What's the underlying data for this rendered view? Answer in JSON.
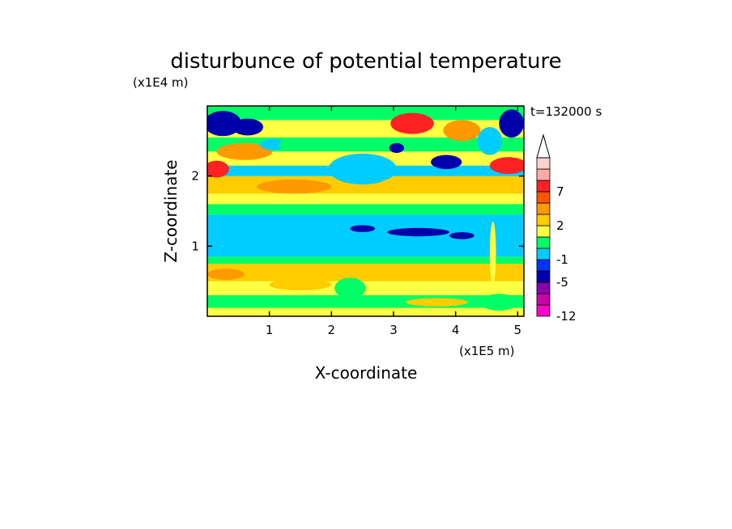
{
  "chart_data": {
    "type": "heatmap",
    "title": "disturbunce of potential temperature",
    "y_scale_label": "(x1E4 m)",
    "x_scale_label": "(x1E5 m)",
    "xlabel": "X-coordinate",
    "ylabel": "Z-coordinate",
    "time_label": "t=132000 s",
    "xlim": [
      0,
      5.1
    ],
    "ylim": [
      0,
      3.0
    ],
    "x_ticks": [
      "1",
      "2",
      "3",
      "4",
      "5"
    ],
    "y_ticks": [
      "1",
      "2"
    ],
    "colorbar": {
      "labels": [
        "7",
        "2",
        "-1",
        "-5",
        "-12"
      ],
      "levels": [
        -12,
        -9,
        -7,
        -5,
        -3,
        -1,
        0,
        1,
        2,
        3,
        5,
        7,
        9,
        11
      ],
      "colors": [
        "#ff00cc",
        "#cc00aa",
        "#8800aa",
        "#0000aa",
        "#0033ff",
        "#00ccff",
        "#00ff66",
        "#ffff44",
        "#ffcc00",
        "#ff9900",
        "#ff5500",
        "#ff2222",
        "#ffaaaa",
        "#ffd0d0"
      ],
      "extend": "max"
    },
    "bands": [
      {
        "z_from": 0.0,
        "z_to": 0.12,
        "class": 1
      },
      {
        "z_from": 0.12,
        "z_to": 0.3,
        "class": 0
      },
      {
        "z_from": 0.3,
        "z_to": 0.5,
        "class": 1
      },
      {
        "z_from": 0.5,
        "z_to": 0.75,
        "class": 2
      },
      {
        "z_from": 0.75,
        "z_to": 0.85,
        "class": 0
      },
      {
        "z_from": 0.85,
        "z_to": 1.45,
        "class": -1
      },
      {
        "z_from": 1.45,
        "z_to": 1.6,
        "class": 0
      },
      {
        "z_from": 1.6,
        "z_to": 1.75,
        "class": 1
      },
      {
        "z_from": 1.75,
        "z_to": 2.0,
        "class": 2
      },
      {
        "z_from": 2.0,
        "z_to": 2.15,
        "class": -1
      },
      {
        "z_from": 2.15,
        "z_to": 2.35,
        "class": 1
      },
      {
        "z_from": 2.35,
        "z_to": 2.55,
        "class": 0
      },
      {
        "z_from": 2.55,
        "z_to": 2.8,
        "class": 1
      },
      {
        "z_from": 2.8,
        "z_to": 3.0,
        "class": 0
      }
    ],
    "blobs": [
      {
        "x": 0.25,
        "z": 2.75,
        "rx": 0.3,
        "rz": 0.18,
        "class": -5
      },
      {
        "x": 0.65,
        "z": 2.7,
        "rx": 0.25,
        "rz": 0.12,
        "class": -5
      },
      {
        "x": 0.15,
        "z": 2.1,
        "rx": 0.2,
        "rz": 0.12,
        "class": 7
      },
      {
        "x": 0.6,
        "z": 2.35,
        "rx": 0.45,
        "rz": 0.12,
        "class": 3
      },
      {
        "x": 1.05,
        "z": 2.45,
        "rx": 0.2,
        "rz": 0.08,
        "class": -1
      },
      {
        "x": 1.5,
        "z": 2.45,
        "rx": 0.35,
        "rz": 0.09,
        "class": 0
      },
      {
        "x": 2.45,
        "z": 2.1,
        "rx": 0.3,
        "rz": 0.1,
        "class": -5
      },
      {
        "x": 2.5,
        "z": 2.1,
        "rx": 0.55,
        "rz": 0.22,
        "class": -1
      },
      {
        "x": 3.05,
        "z": 2.4,
        "rx": 0.12,
        "rz": 0.07,
        "class": -5
      },
      {
        "x": 3.3,
        "z": 2.75,
        "rx": 0.35,
        "rz": 0.15,
        "class": 7
      },
      {
        "x": 3.85,
        "z": 2.2,
        "rx": 0.25,
        "rz": 0.1,
        "class": -5
      },
      {
        "x": 4.1,
        "z": 2.65,
        "rx": 0.3,
        "rz": 0.15,
        "class": 3
      },
      {
        "x": 4.85,
        "z": 2.15,
        "rx": 0.3,
        "rz": 0.12,
        "class": 7
      },
      {
        "x": 4.9,
        "z": 2.75,
        "rx": 0.2,
        "rz": 0.2,
        "class": -5
      },
      {
        "x": 4.55,
        "z": 2.5,
        "rx": 0.2,
        "rz": 0.2,
        "class": -1
      },
      {
        "x": 1.4,
        "z": 1.85,
        "rx": 0.6,
        "rz": 0.1,
        "class": 3
      },
      {
        "x": 3.2,
        "z": 1.9,
        "rx": 0.4,
        "rz": 0.08,
        "class": 2
      },
      {
        "x": 3.4,
        "z": 1.2,
        "rx": 0.5,
        "rz": 0.06,
        "class": -5
      },
      {
        "x": 4.1,
        "z": 1.15,
        "rx": 0.2,
        "rz": 0.05,
        "class": -5
      },
      {
        "x": 2.5,
        "z": 1.25,
        "rx": 0.2,
        "rz": 0.05,
        "class": -5
      },
      {
        "x": 4.6,
        "z": 0.9,
        "rx": 0.05,
        "rz": 0.45,
        "class": 1
      },
      {
        "x": 2.3,
        "z": 0.4,
        "rx": 0.25,
        "rz": 0.15,
        "class": 0
      },
      {
        "x": 1.5,
        "z": 0.45,
        "rx": 0.5,
        "rz": 0.08,
        "class": 2
      },
      {
        "x": 3.7,
        "z": 0.2,
        "rx": 0.5,
        "rz": 0.06,
        "class": 2
      },
      {
        "x": 4.7,
        "z": 0.2,
        "rx": 0.3,
        "rz": 0.12,
        "class": 0
      },
      {
        "x": 0.3,
        "z": 0.6,
        "rx": 0.3,
        "rz": 0.08,
        "class": 3
      }
    ]
  }
}
